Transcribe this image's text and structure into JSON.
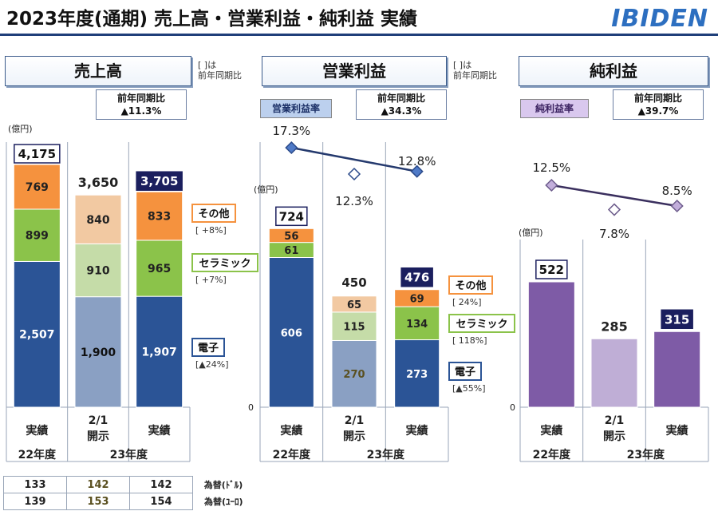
{
  "header": {
    "title": "2023年度(通期) 売上高・営業利益・純利益 実績",
    "logo": "IBIDEN"
  },
  "notes": {
    "bracket": "[   ]は",
    "bracket2": "前年同期比"
  },
  "colors": {
    "electronics_actual": "#2b5496",
    "electronics_forecast": "#8aa0c3",
    "ceramics_actual": "#8bc34a",
    "ceramics_forecast": "#c5dca8",
    "other_actual": "#f5923e",
    "other_forecast": "#f2c9a2",
    "net_actual": "#7e5ba6",
    "net_forecast": "#bfaed6",
    "line": "#253a6e"
  },
  "sales": {
    "title": "売上高",
    "unit": "(億円)",
    "yoy_label": "前年同期比",
    "yoy_value": "▲11.3%",
    "seg_labels": {
      "other": "その他",
      "ceramics": "セラミック",
      "electronics": "電子"
    },
    "seg_yoy": {
      "other": "[    +8%]",
      "ceramics": "[    +7%]",
      "electronics": "[▲24%]"
    }
  },
  "op": {
    "title": "営業利益",
    "unit": "(億円)",
    "yoy_label": "前年同期比",
    "yoy_value": "▲34.3%",
    "rate_label": "営業利益率",
    "seg_labels": {
      "other": "その他",
      "ceramics": "セラミック",
      "electronics": "電子"
    },
    "seg_yoy": {
      "other": "[    24%]",
      "ceramics": "[  118%]",
      "electronics": "[▲55%]"
    }
  },
  "net": {
    "title": "純利益",
    "unit": "(億円)",
    "yoy_label": "前年同期比",
    "yoy_value": "▲39.7%",
    "rate_label": "純利益率"
  },
  "zero": "0",
  "chart_data": [
    {
      "type": "bar",
      "title": "売上高",
      "ylabel": "(億円)",
      "categories": [
        "22年度 実績",
        "23年度 2/1開示",
        "23年度 実績"
      ],
      "series": [
        {
          "name": "電子",
          "values": [
            2507,
            1900,
            1907
          ]
        },
        {
          "name": "セラミック",
          "values": [
            899,
            910,
            965
          ]
        },
        {
          "name": "その他",
          "values": [
            769,
            840,
            833
          ]
        }
      ],
      "totals": [
        "4,175",
        "3,650",
        "3,705"
      ],
      "labels": {
        "electronics": [
          "2,507",
          "1,900",
          "1,907"
        ],
        "ceramics": [
          "899",
          "910",
          "965"
        ],
        "other": [
          "769",
          "840",
          "833"
        ]
      }
    },
    {
      "type": "bar",
      "title": "営業利益",
      "ylabel": "(億円)",
      "categories": [
        "22年度 実績",
        "23年度 2/1開示",
        "23年度 実績"
      ],
      "series": [
        {
          "name": "電子",
          "values": [
            606,
            270,
            273
          ]
        },
        {
          "name": "セラミック",
          "values": [
            61,
            115,
            134
          ]
        },
        {
          "name": "その他",
          "values": [
            56,
            65,
            69
          ]
        }
      ],
      "totals": [
        "724",
        "450",
        "476"
      ],
      "labels": {
        "electronics": [
          "606",
          "270",
          "273"
        ],
        "ceramics": [
          "61",
          "115",
          "134"
        ],
        "other": [
          "56",
          "65",
          "69"
        ]
      },
      "rate": {
        "name": "営業利益率",
        "values": [
          17.3,
          12.3,
          12.8
        ],
        "labels": [
          "17.3%",
          "12.3%",
          "12.8%"
        ]
      }
    },
    {
      "type": "bar",
      "title": "純利益",
      "ylabel": "(億円)",
      "categories": [
        "22年度 実績",
        "23年度 2/1開示",
        "23年度 実績"
      ],
      "series": [
        {
          "name": "純利益",
          "values": [
            522,
            285,
            315
          ]
        }
      ],
      "totals": [
        "522",
        "285",
        "315"
      ],
      "rate": {
        "name": "純利益率",
        "values": [
          12.5,
          7.8,
          8.5
        ],
        "labels": [
          "12.5%",
          "7.8%",
          "8.5%"
        ]
      }
    }
  ],
  "axis": {
    "cat1": "実績",
    "cat2a": "2/1",
    "cat2b": "開示",
    "cat3": "実績",
    "fy22": "22年度",
    "fy23": "23年度"
  },
  "fx": {
    "rows": [
      {
        "values": [
          "133",
          "142",
          "142"
        ],
        "label": "為替(ﾄﾞﾙ)"
      },
      {
        "values": [
          "139",
          "153",
          "154"
        ],
        "label": "為替(ﾕｰﾛ)"
      }
    ]
  }
}
